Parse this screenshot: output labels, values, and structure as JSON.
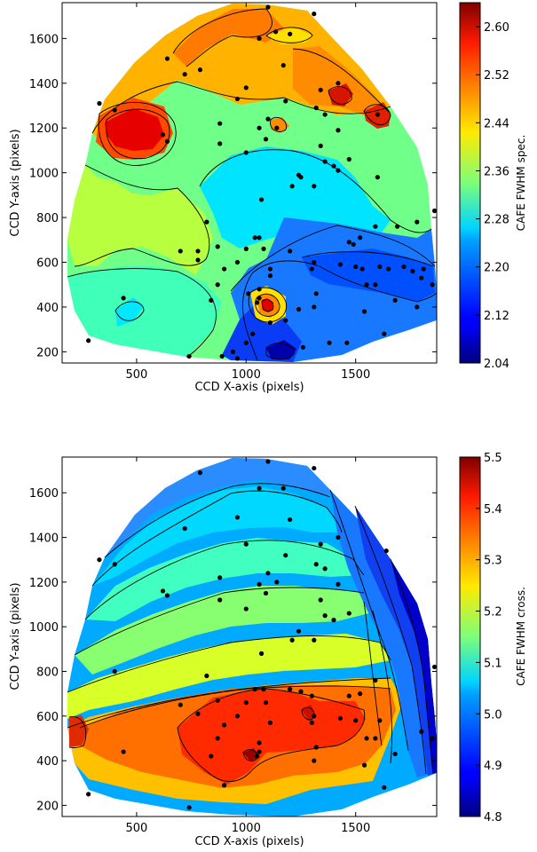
{
  "chart_data": [
    {
      "type": "contour",
      "xlabel": "CCD X-axis (pixels)",
      "ylabel": "CCD Y-axis (pixels)",
      "colorbar_label": "CAFE FWHM spec.",
      "xlim": [
        160,
        1870
      ],
      "ylim": [
        150,
        1760
      ],
      "x_ticks": [
        500,
        1000,
        1500
      ],
      "y_ticks": [
        200,
        400,
        600,
        800,
        1000,
        1200,
        1400,
        1600
      ],
      "colorbar_range": [
        2.04,
        2.64
      ],
      "colorbar_ticks": [
        "2.04",
        "2.12",
        "2.20",
        "2.28",
        "2.36",
        "2.44",
        "2.52",
        "2.60"
      ],
      "colormap": "jet",
      "points": [
        {
          "x": 1100,
          "y": 1740
        },
        {
          "x": 1310,
          "y": 1710
        },
        {
          "x": 1135,
          "y": 1630
        },
        {
          "x": 1200,
          "y": 1620
        },
        {
          "x": 1060,
          "y": 1600
        },
        {
          "x": 640,
          "y": 1510
        },
        {
          "x": 1170,
          "y": 1480
        },
        {
          "x": 790,
          "y": 1460
        },
        {
          "x": 720,
          "y": 1440
        },
        {
          "x": 1420,
          "y": 1400
        },
        {
          "x": 1340,
          "y": 1370
        },
        {
          "x": 1000,
          "y": 1380
        },
        {
          "x": 960,
          "y": 1330
        },
        {
          "x": 1180,
          "y": 1320
        },
        {
          "x": 1320,
          "y": 1290
        },
        {
          "x": 1600,
          "y": 1260
        },
        {
          "x": 1360,
          "y": 1260
        },
        {
          "x": 1100,
          "y": 1240
        },
        {
          "x": 880,
          "y": 1220
        },
        {
          "x": 1060,
          "y": 1200
        },
        {
          "x": 1140,
          "y": 1200
        },
        {
          "x": 1420,
          "y": 1190
        },
        {
          "x": 620,
          "y": 1170
        },
        {
          "x": 1090,
          "y": 1150
        },
        {
          "x": 880,
          "y": 1130
        },
        {
          "x": 640,
          "y": 1140
        },
        {
          "x": 1340,
          "y": 1120
        },
        {
          "x": 1470,
          "y": 1060
        },
        {
          "x": 1000,
          "y": 1090
        },
        {
          "x": 1360,
          "y": 1050
        },
        {
          "x": 1240,
          "y": 990
        },
        {
          "x": 1400,
          "y": 1030
        },
        {
          "x": 1420,
          "y": 1010
        },
        {
          "x": 1250,
          "y": 980
        },
        {
          "x": 1600,
          "y": 980
        },
        {
          "x": 400,
          "y": 1280
        },
        {
          "x": 1210,
          "y": 940
        },
        {
          "x": 1310,
          "y": 940
        },
        {
          "x": 330,
          "y": 1310
        },
        {
          "x": 1070,
          "y": 880
        },
        {
          "x": 1860,
          "y": 830
        },
        {
          "x": 820,
          "y": 780
        },
        {
          "x": 1780,
          "y": 780
        },
        {
          "x": 1590,
          "y": 760
        },
        {
          "x": 1690,
          "y": 760
        },
        {
          "x": 1470,
          "y": 690
        },
        {
          "x": 1040,
          "y": 710
        },
        {
          "x": 1060,
          "y": 710
        },
        {
          "x": 1520,
          "y": 710
        },
        {
          "x": 1080,
          "y": 660
        },
        {
          "x": 1490,
          "y": 680
        },
        {
          "x": 870,
          "y": 670
        },
        {
          "x": 1000,
          "y": 660
        },
        {
          "x": 960,
          "y": 600
        },
        {
          "x": 1200,
          "y": 650
        },
        {
          "x": 780,
          "y": 610
        },
        {
          "x": 700,
          "y": 650
        },
        {
          "x": 780,
          "y": 650
        },
        {
          "x": 1530,
          "y": 570
        },
        {
          "x": 1310,
          "y": 600
        },
        {
          "x": 1430,
          "y": 590
        },
        {
          "x": 1500,
          "y": 580
        },
        {
          "x": 1610,
          "y": 580
        },
        {
          "x": 1650,
          "y": 570
        },
        {
          "x": 1720,
          "y": 580
        },
        {
          "x": 1760,
          "y": 560
        },
        {
          "x": 1810,
          "y": 570
        },
        {
          "x": 1110,
          "y": 570
        },
        {
          "x": 1300,
          "y": 570
        },
        {
          "x": 1550,
          "y": 500
        },
        {
          "x": 1590,
          "y": 500
        },
        {
          "x": 1800,
          "y": 530
        },
        {
          "x": 1850,
          "y": 500
        },
        {
          "x": 900,
          "y": 570
        },
        {
          "x": 1110,
          "y": 540
        },
        {
          "x": 870,
          "y": 500
        },
        {
          "x": 1060,
          "y": 480
        },
        {
          "x": 1010,
          "y": 460
        },
        {
          "x": 1060,
          "y": 440
        },
        {
          "x": 1050,
          "y": 420
        },
        {
          "x": 840,
          "y": 430
        },
        {
          "x": 1320,
          "y": 460
        },
        {
          "x": 1680,
          "y": 430
        },
        {
          "x": 1780,
          "y": 400
        },
        {
          "x": 440,
          "y": 440
        },
        {
          "x": 1310,
          "y": 400
        },
        {
          "x": 1240,
          "y": 390
        },
        {
          "x": 1540,
          "y": 380
        },
        {
          "x": 1110,
          "y": 330
        },
        {
          "x": 1180,
          "y": 340
        },
        {
          "x": 1630,
          "y": 280
        },
        {
          "x": 1030,
          "y": 280
        },
        {
          "x": 1380,
          "y": 240
        },
        {
          "x": 1460,
          "y": 240
        },
        {
          "x": 280,
          "y": 250
        },
        {
          "x": 1000,
          "y": 240
        },
        {
          "x": 1260,
          "y": 220
        },
        {
          "x": 940,
          "y": 200
        },
        {
          "x": 890,
          "y": 180
        },
        {
          "x": 740,
          "y": 180
        },
        {
          "x": 960,
          "y": 170
        }
      ]
    },
    {
      "type": "contour",
      "xlabel": "CCD X-axis (pixels)",
      "ylabel": "CCD Y-axis (pixels)",
      "colorbar_label": "CAFE FWHM cross.",
      "xlim": [
        160,
        1870
      ],
      "ylim": [
        150,
        1760
      ],
      "x_ticks": [
        500,
        1000,
        1500
      ],
      "y_ticks": [
        200,
        400,
        600,
        800,
        1000,
        1200,
        1400,
        1600
      ],
      "colorbar_range": [
        4.8,
        5.5
      ],
      "colorbar_ticks": [
        "4.8",
        "4.9",
        "5.0",
        "5.1",
        "5.2",
        "5.3",
        "5.4",
        "5.5"
      ],
      "colormap": "jet",
      "points": [
        {
          "x": 1100,
          "y": 1740
        },
        {
          "x": 1310,
          "y": 1710
        },
        {
          "x": 790,
          "y": 1690
        },
        {
          "x": 1060,
          "y": 1620
        },
        {
          "x": 1170,
          "y": 1620
        },
        {
          "x": 960,
          "y": 1490
        },
        {
          "x": 1200,
          "y": 1480
        },
        {
          "x": 720,
          "y": 1440
        },
        {
          "x": 1420,
          "y": 1400
        },
        {
          "x": 1340,
          "y": 1370
        },
        {
          "x": 1000,
          "y": 1370
        },
        {
          "x": 1640,
          "y": 1340
        },
        {
          "x": 1180,
          "y": 1320
        },
        {
          "x": 1320,
          "y": 1280
        },
        {
          "x": 1360,
          "y": 1260
        },
        {
          "x": 400,
          "y": 1280
        },
        {
          "x": 1100,
          "y": 1240
        },
        {
          "x": 880,
          "y": 1220
        },
        {
          "x": 1060,
          "y": 1190
        },
        {
          "x": 1140,
          "y": 1200
        },
        {
          "x": 1420,
          "y": 1190
        },
        {
          "x": 620,
          "y": 1160
        },
        {
          "x": 1090,
          "y": 1150
        },
        {
          "x": 880,
          "y": 1120
        },
        {
          "x": 640,
          "y": 1140
        },
        {
          "x": 1340,
          "y": 1120
        },
        {
          "x": 1470,
          "y": 1060
        },
        {
          "x": 1000,
          "y": 1080
        },
        {
          "x": 1360,
          "y": 1050
        },
        {
          "x": 1240,
          "y": 980
        },
        {
          "x": 1400,
          "y": 1030
        },
        {
          "x": 330,
          "y": 1300
        },
        {
          "x": 1210,
          "y": 940
        },
        {
          "x": 1310,
          "y": 940
        },
        {
          "x": 1070,
          "y": 880
        },
        {
          "x": 1860,
          "y": 820
        },
        {
          "x": 400,
          "y": 800
        },
        {
          "x": 820,
          "y": 780
        },
        {
          "x": 1590,
          "y": 760
        },
        {
          "x": 1520,
          "y": 700
        },
        {
          "x": 1040,
          "y": 720
        },
        {
          "x": 1080,
          "y": 720
        },
        {
          "x": 1470,
          "y": 690
        },
        {
          "x": 1200,
          "y": 720
        },
        {
          "x": 1250,
          "y": 710
        },
        {
          "x": 1300,
          "y": 690
        },
        {
          "x": 870,
          "y": 670
        },
        {
          "x": 1000,
          "y": 660
        },
        {
          "x": 1090,
          "y": 660
        },
        {
          "x": 960,
          "y": 600
        },
        {
          "x": 780,
          "y": 610
        },
        {
          "x": 700,
          "y": 650
        },
        {
          "x": 1310,
          "y": 600
        },
        {
          "x": 1430,
          "y": 590
        },
        {
          "x": 1500,
          "y": 580
        },
        {
          "x": 1610,
          "y": 580
        },
        {
          "x": 1110,
          "y": 570
        },
        {
          "x": 1300,
          "y": 570
        },
        {
          "x": 1550,
          "y": 500
        },
        {
          "x": 1590,
          "y": 500
        },
        {
          "x": 1800,
          "y": 530
        },
        {
          "x": 1850,
          "y": 500
        },
        {
          "x": 900,
          "y": 560
        },
        {
          "x": 870,
          "y": 500
        },
        {
          "x": 1060,
          "y": 480
        },
        {
          "x": 1060,
          "y": 440
        },
        {
          "x": 1050,
          "y": 420
        },
        {
          "x": 840,
          "y": 420
        },
        {
          "x": 1320,
          "y": 460
        },
        {
          "x": 1680,
          "y": 430
        },
        {
          "x": 440,
          "y": 440
        },
        {
          "x": 1310,
          "y": 400
        },
        {
          "x": 1540,
          "y": 380
        },
        {
          "x": 1630,
          "y": 280
        },
        {
          "x": 900,
          "y": 290
        },
        {
          "x": 280,
          "y": 250
        },
        {
          "x": 740,
          "y": 190
        }
      ]
    }
  ]
}
